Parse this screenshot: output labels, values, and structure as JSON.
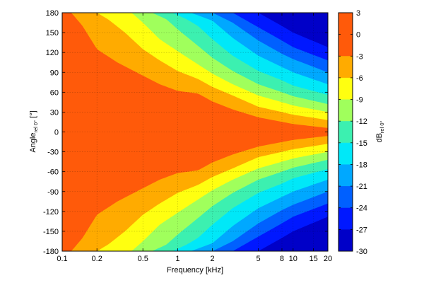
{
  "chart_data": {
    "type": "heatmap",
    "title": "",
    "xlabel": "Frequency [kHz]",
    "ylabel": {
      "main": "Angle",
      "sub": "rel 0°",
      "suffix": " [°]"
    },
    "colorbar_label": {
      "main": "dB",
      "sub": "rel 0°"
    },
    "x_scale": "log",
    "xlim": [
      0.1,
      20
    ],
    "ylim": [
      -180,
      180
    ],
    "clim": [
      -30,
      3
    ],
    "x_ticks": [
      {
        "value": 0.1,
        "label": "0.1"
      },
      {
        "value": 0.2,
        "label": "0.2"
      },
      {
        "value": 0.5,
        "label": "0.5"
      },
      {
        "value": 1,
        "label": "1"
      },
      {
        "value": 2,
        "label": "2"
      },
      {
        "value": 5,
        "label": "5"
      },
      {
        "value": 8,
        "label": "8"
      },
      {
        "value": 10,
        "label": "10"
      },
      {
        "value": 15,
        "label": "15"
      },
      {
        "value": 20,
        "label": "20"
      }
    ],
    "y_ticks": [
      {
        "value": 180,
        "label": "180"
      },
      {
        "value": 150,
        "label": "150"
      },
      {
        "value": 120,
        "label": "120"
      },
      {
        "value": 90,
        "label": "90"
      },
      {
        "value": 60,
        "label": "60"
      },
      {
        "value": 30,
        "label": "30"
      },
      {
        "value": 0,
        "label": "0"
      },
      {
        "value": -30,
        "label": "-30"
      },
      {
        "value": -60,
        "label": "-60"
      },
      {
        "value": -90,
        "label": "-90"
      },
      {
        "value": -120,
        "label": "-120"
      },
      {
        "value": -150,
        "label": "-150"
      },
      {
        "value": -180,
        "label": "-180"
      }
    ],
    "colorbar_ticks": [
      {
        "value": 3,
        "label": "3"
      },
      {
        "value": 0,
        "label": "0"
      },
      {
        "value": -3,
        "label": "-3"
      },
      {
        "value": -6,
        "label": "-6"
      },
      {
        "value": -9,
        "label": "-9"
      },
      {
        "value": -12,
        "label": "-12"
      },
      {
        "value": -15,
        "label": "-15"
      },
      {
        "value": -18,
        "label": "-18"
      },
      {
        "value": -21,
        "label": "-21"
      },
      {
        "value": -24,
        "label": "-24"
      },
      {
        "value": -27,
        "label": "-27"
      },
      {
        "value": -30,
        "label": "-30"
      }
    ],
    "levels": [
      {
        "min": 0,
        "max": 3,
        "color": "#ff5a0a"
      },
      {
        "min": -3,
        "max": 0,
        "color": "#ff5a0a"
      },
      {
        "min": -6,
        "max": -3,
        "color": "#ffab00"
      },
      {
        "min": -9,
        "max": -6,
        "color": "#ffff10"
      },
      {
        "min": -12,
        "max": -9,
        "color": "#a0ff5c"
      },
      {
        "min": -15,
        "max": -12,
        "color": "#3cf0b0"
      },
      {
        "min": -18,
        "max": -15,
        "color": "#00e8f8"
      },
      {
        "min": -21,
        "max": -18,
        "color": "#00a8ff"
      },
      {
        "min": -24,
        "max": -21,
        "color": "#0060ff"
      },
      {
        "min": -27,
        "max": -24,
        "color": "#0018ff"
      },
      {
        "min": -30,
        "max": -27,
        "color": "#0000c8"
      }
    ],
    "directivity_contours": [
      {
        "level": -3,
        "beamwidth_deg": [
          [
            0.1,
            180
          ],
          [
            0.12,
            180
          ],
          [
            0.15,
            160
          ],
          [
            0.2,
            125
          ],
          [
            0.3,
            105
          ],
          [
            0.5,
            85
          ],
          [
            0.7,
            72
          ],
          [
            1,
            62
          ],
          [
            1.5,
            58
          ],
          [
            2,
            46
          ],
          [
            3,
            34
          ],
          [
            5,
            22
          ],
          [
            10,
            12
          ],
          [
            20,
            6
          ]
        ]
      },
      {
        "level": -6,
        "beamwidth_deg": [
          [
            0.1,
            180
          ],
          [
            0.2,
            180
          ],
          [
            0.25,
            170
          ],
          [
            0.35,
            150
          ],
          [
            0.5,
            125
          ],
          [
            0.7,
            108
          ],
          [
            1,
            92
          ],
          [
            1.5,
            80
          ],
          [
            2,
            68
          ],
          [
            3,
            55
          ],
          [
            5,
            38
          ],
          [
            8,
            30
          ],
          [
            10,
            26
          ],
          [
            20,
            18
          ]
        ]
      },
      {
        "level": -9,
        "beamwidth_deg": [
          [
            0.1,
            180
          ],
          [
            0.4,
            180
          ],
          [
            0.5,
            165
          ],
          [
            0.7,
            140
          ],
          [
            1,
            122
          ],
          [
            1.5,
            102
          ],
          [
            2,
            88
          ],
          [
            3,
            72
          ],
          [
            5,
            55
          ],
          [
            8,
            45
          ],
          [
            10,
            40
          ],
          [
            20,
            30
          ]
        ]
      },
      {
        "level": -12,
        "beamwidth_deg": [
          [
            0.1,
            180
          ],
          [
            0.6,
            180
          ],
          [
            0.8,
            170
          ],
          [
            1,
            155
          ],
          [
            1.5,
            130
          ],
          [
            2,
            112
          ],
          [
            3,
            92
          ],
          [
            5,
            72
          ],
          [
            8,
            60
          ],
          [
            10,
            54
          ],
          [
            20,
            42
          ]
        ]
      },
      {
        "level": -15,
        "beamwidth_deg": [
          [
            0.1,
            180
          ],
          [
            0.9,
            180
          ],
          [
            1.2,
            170
          ],
          [
            1.5,
            160
          ],
          [
            2,
            140
          ],
          [
            3,
            115
          ],
          [
            5,
            92
          ],
          [
            8,
            78
          ],
          [
            10,
            70
          ],
          [
            20,
            56
          ]
        ]
      },
      {
        "level": -18,
        "beamwidth_deg": [
          [
            0.1,
            180
          ],
          [
            1.3,
            180
          ],
          [
            2,
            168
          ],
          [
            3,
            142
          ],
          [
            5,
            115
          ],
          [
            8,
            98
          ],
          [
            10,
            90
          ],
          [
            20,
            72
          ]
        ]
      },
      {
        "level": -21,
        "beamwidth_deg": [
          [
            0.1,
            180
          ],
          [
            2,
            180
          ],
          [
            3,
            165
          ],
          [
            5,
            138
          ],
          [
            8,
            118
          ],
          [
            10,
            110
          ],
          [
            20,
            90
          ]
        ]
      },
      {
        "level": -24,
        "beamwidth_deg": [
          [
            0.1,
            180
          ],
          [
            3,
            180
          ],
          [
            5,
            158
          ],
          [
            8,
            138
          ],
          [
            10,
            128
          ],
          [
            20,
            108
          ]
        ]
      },
      {
        "level": -27,
        "beamwidth_deg": [
          [
            0.1,
            180
          ],
          [
            5,
            180
          ],
          [
            8,
            160
          ],
          [
            10,
            150
          ],
          [
            20,
            128
          ]
        ]
      }
    ]
  }
}
